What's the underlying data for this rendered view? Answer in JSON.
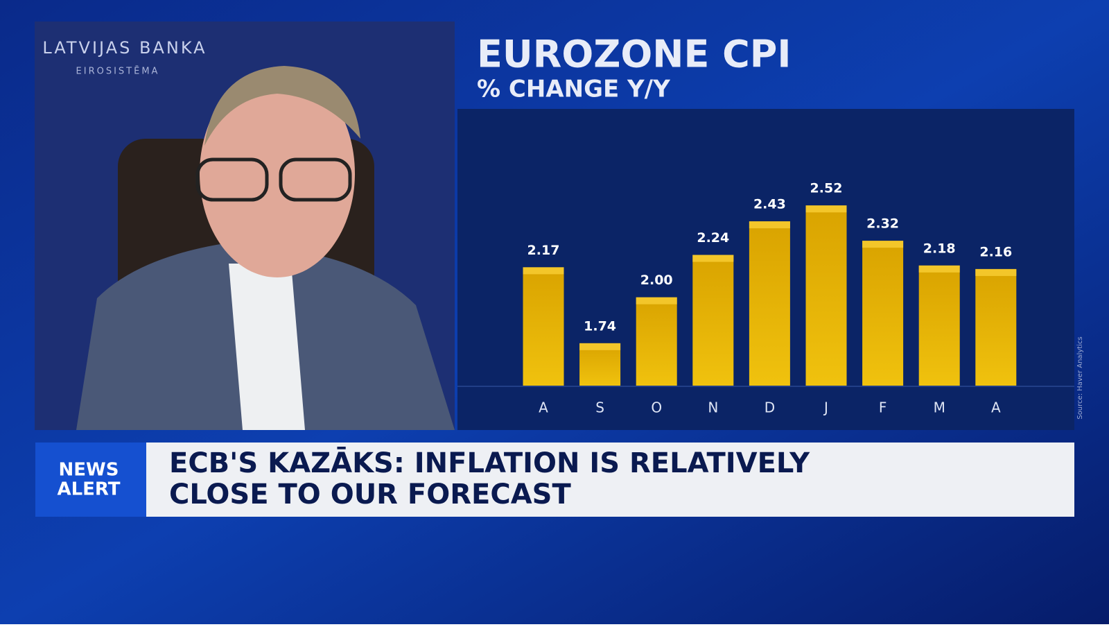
{
  "chart_data": {
    "type": "bar",
    "title": "EUROZONE CPI",
    "subtitle": "% CHANGE Y/Y",
    "categories": [
      "A",
      "S",
      "O",
      "N",
      "D",
      "J",
      "F",
      "M",
      "A"
    ],
    "values": [
      2.17,
      1.74,
      2.0,
      2.24,
      2.43,
      2.52,
      2.32,
      2.18,
      2.16
    ],
    "value_labels": [
      "2.17",
      "1.74",
      "2.00",
      "2.24",
      "2.43",
      "2.52",
      "2.32",
      "2.18",
      "2.16"
    ],
    "color": "#e0a800",
    "ylim": [
      1.5,
      3.0
    ],
    "source": "Source: Haver Analytics"
  },
  "video": {
    "backdrop_lines": [
      "LATVIJAS BANKA",
      "EIROSISTĒMA"
    ]
  },
  "banner": {
    "label_lines": [
      "NEWS",
      "ALERT"
    ],
    "headline_lines": [
      "ECB'S KAZĀKS: INFLATION IS RELATIVELY",
      "CLOSE TO OUR FORECAST"
    ]
  }
}
